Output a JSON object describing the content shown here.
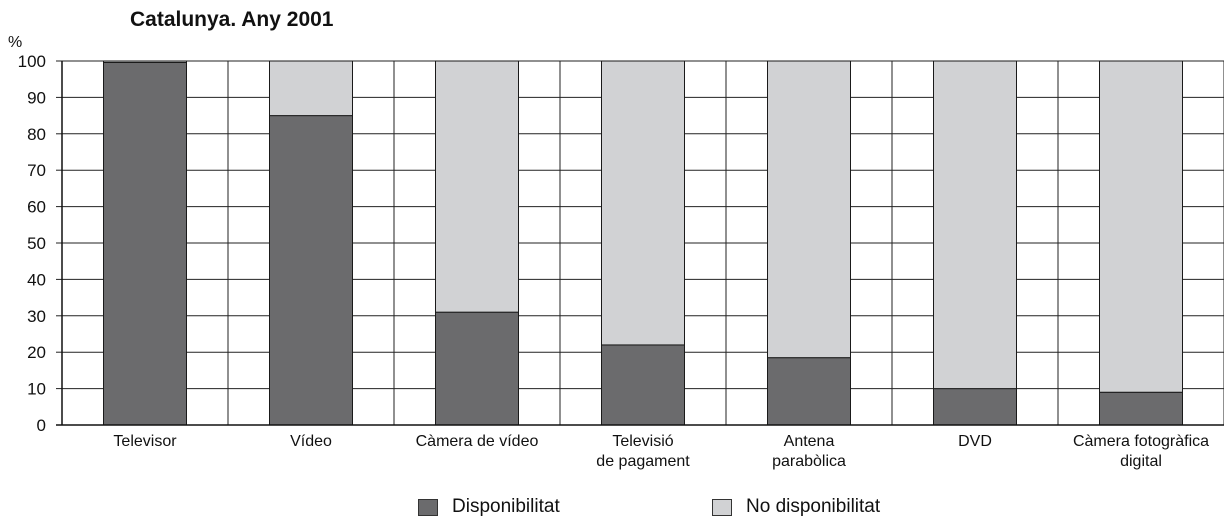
{
  "chart_data": {
    "type": "bar",
    "stacked": true,
    "title": "Catalunya. Any 2001",
    "ylabel": "%",
    "xlabel": "",
    "ylim": [
      0,
      100
    ],
    "yticks": [
      0,
      10,
      20,
      30,
      40,
      50,
      60,
      70,
      80,
      90,
      100
    ],
    "grid": true,
    "legend_position": "bottom",
    "categories": [
      [
        "Televisor"
      ],
      [
        "Vídeo"
      ],
      [
        "Càmera de vídeo"
      ],
      [
        "Televisió",
        "de pagament"
      ],
      [
        "Antena",
        "parabòlica"
      ],
      [
        "DVD"
      ],
      [
        "Càmera fotogràfica",
        "digital"
      ]
    ],
    "series": [
      {
        "name": "Disponibilitat",
        "color": "#6b6b6d",
        "values": [
          99.6,
          85,
          31,
          22,
          18.5,
          10,
          9
        ]
      },
      {
        "name": "No disponibilitat",
        "color": "#d1d2d4",
        "values": [
          0.4,
          15,
          69,
          78,
          81.5,
          90,
          91
        ]
      }
    ]
  }
}
